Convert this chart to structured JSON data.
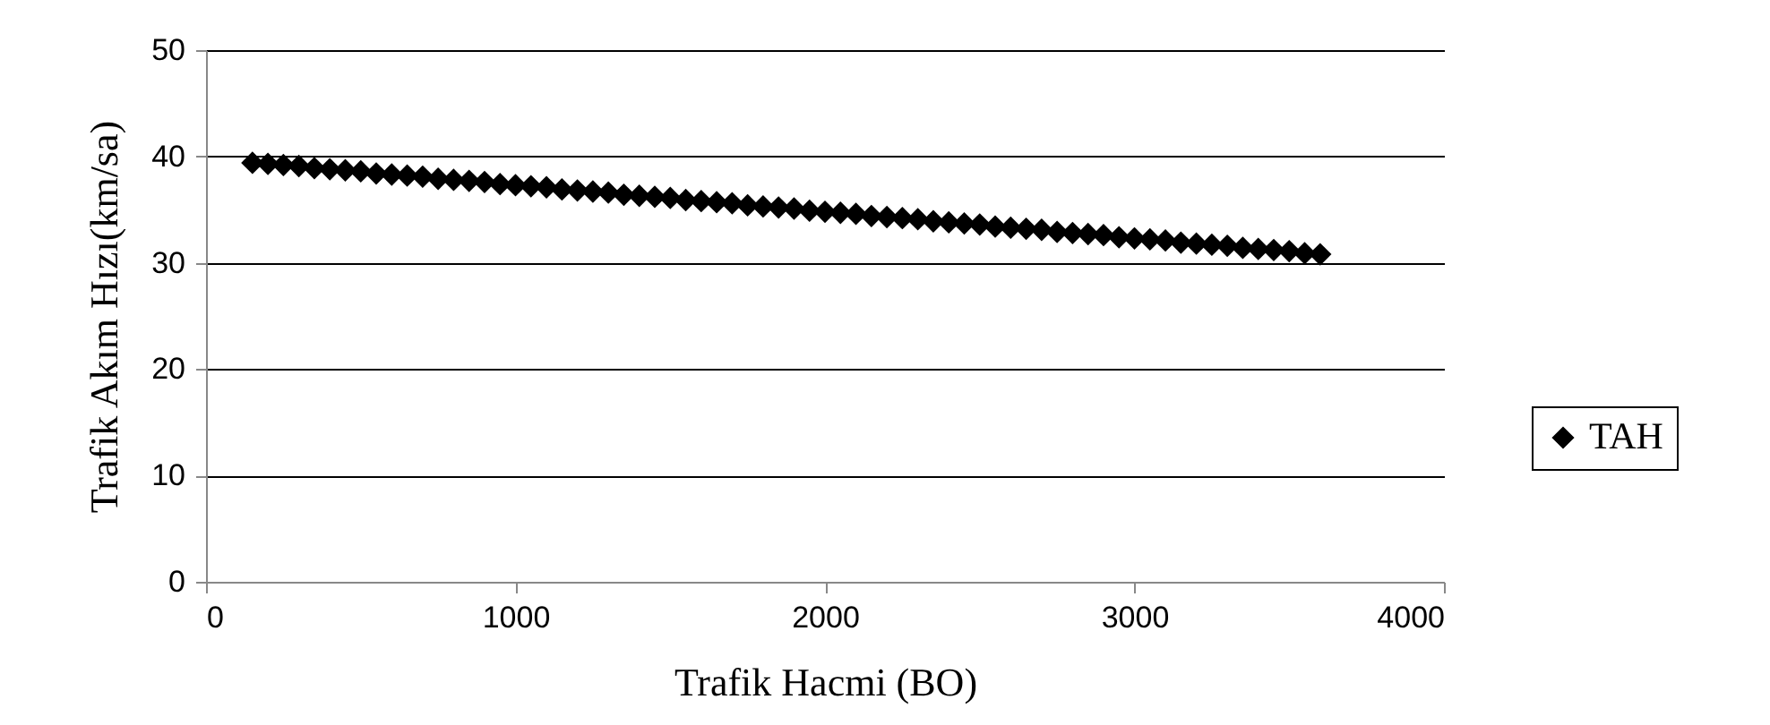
{
  "chart_data": {
    "type": "scatter",
    "xlabel": "Trafik Hacmi (BO)",
    "ylabel": "Trafik Akım Hızı(km/sa)",
    "x": [
      150,
      200,
      250,
      300,
      350,
      400,
      450,
      500,
      550,
      600,
      650,
      700,
      750,
      800,
      850,
      900,
      950,
      1000,
      1050,
      1100,
      1150,
      1200,
      1250,
      1300,
      1350,
      1400,
      1450,
      1500,
      1550,
      1600,
      1650,
      1700,
      1750,
      1800,
      1850,
      1900,
      1950,
      2000,
      2050,
      2100,
      2150,
      2200,
      2250,
      2300,
      2350,
      2400,
      2450,
      2500,
      2550,
      2600,
      2650,
      2700,
      2750,
      2800,
      2850,
      2900,
      2950,
      3000,
      3050,
      3100,
      3150,
      3200,
      3250,
      3300,
      3350,
      3400,
      3450,
      3500,
      3550,
      3600
    ],
    "series": [
      {
        "name": "TAH",
        "color": "#000000",
        "values": [
          39.4,
          39.3,
          39.2,
          39.1,
          38.9,
          38.8,
          38.7,
          38.6,
          38.4,
          38.3,
          38.2,
          38.1,
          37.9,
          37.8,
          37.7,
          37.6,
          37.4,
          37.3,
          37.2,
          37.1,
          36.9,
          36.8,
          36.7,
          36.6,
          36.4,
          36.3,
          36.2,
          36.1,
          35.9,
          35.8,
          35.7,
          35.6,
          35.4,
          35.3,
          35.2,
          35.1,
          34.9,
          34.8,
          34.7,
          34.6,
          34.4,
          34.3,
          34.2,
          34.1,
          33.9,
          33.8,
          33.7,
          33.6,
          33.4,
          33.3,
          33.2,
          33.1,
          32.9,
          32.8,
          32.7,
          32.6,
          32.4,
          32.3,
          32.2,
          32.1,
          31.9,
          31.8,
          31.7,
          31.6,
          31.4,
          31.3,
          31.2,
          31.1,
          30.9,
          30.8
        ]
      }
    ],
    "xlim": [
      0,
      4000
    ],
    "xticks": [
      0,
      1000,
      2000,
      3000,
      4000
    ],
    "ylim": [
      0,
      50
    ],
    "yticks": [
      0,
      10,
      20,
      30,
      40,
      50
    ],
    "grid": "y",
    "legend": "right",
    "marker": "diamond"
  }
}
